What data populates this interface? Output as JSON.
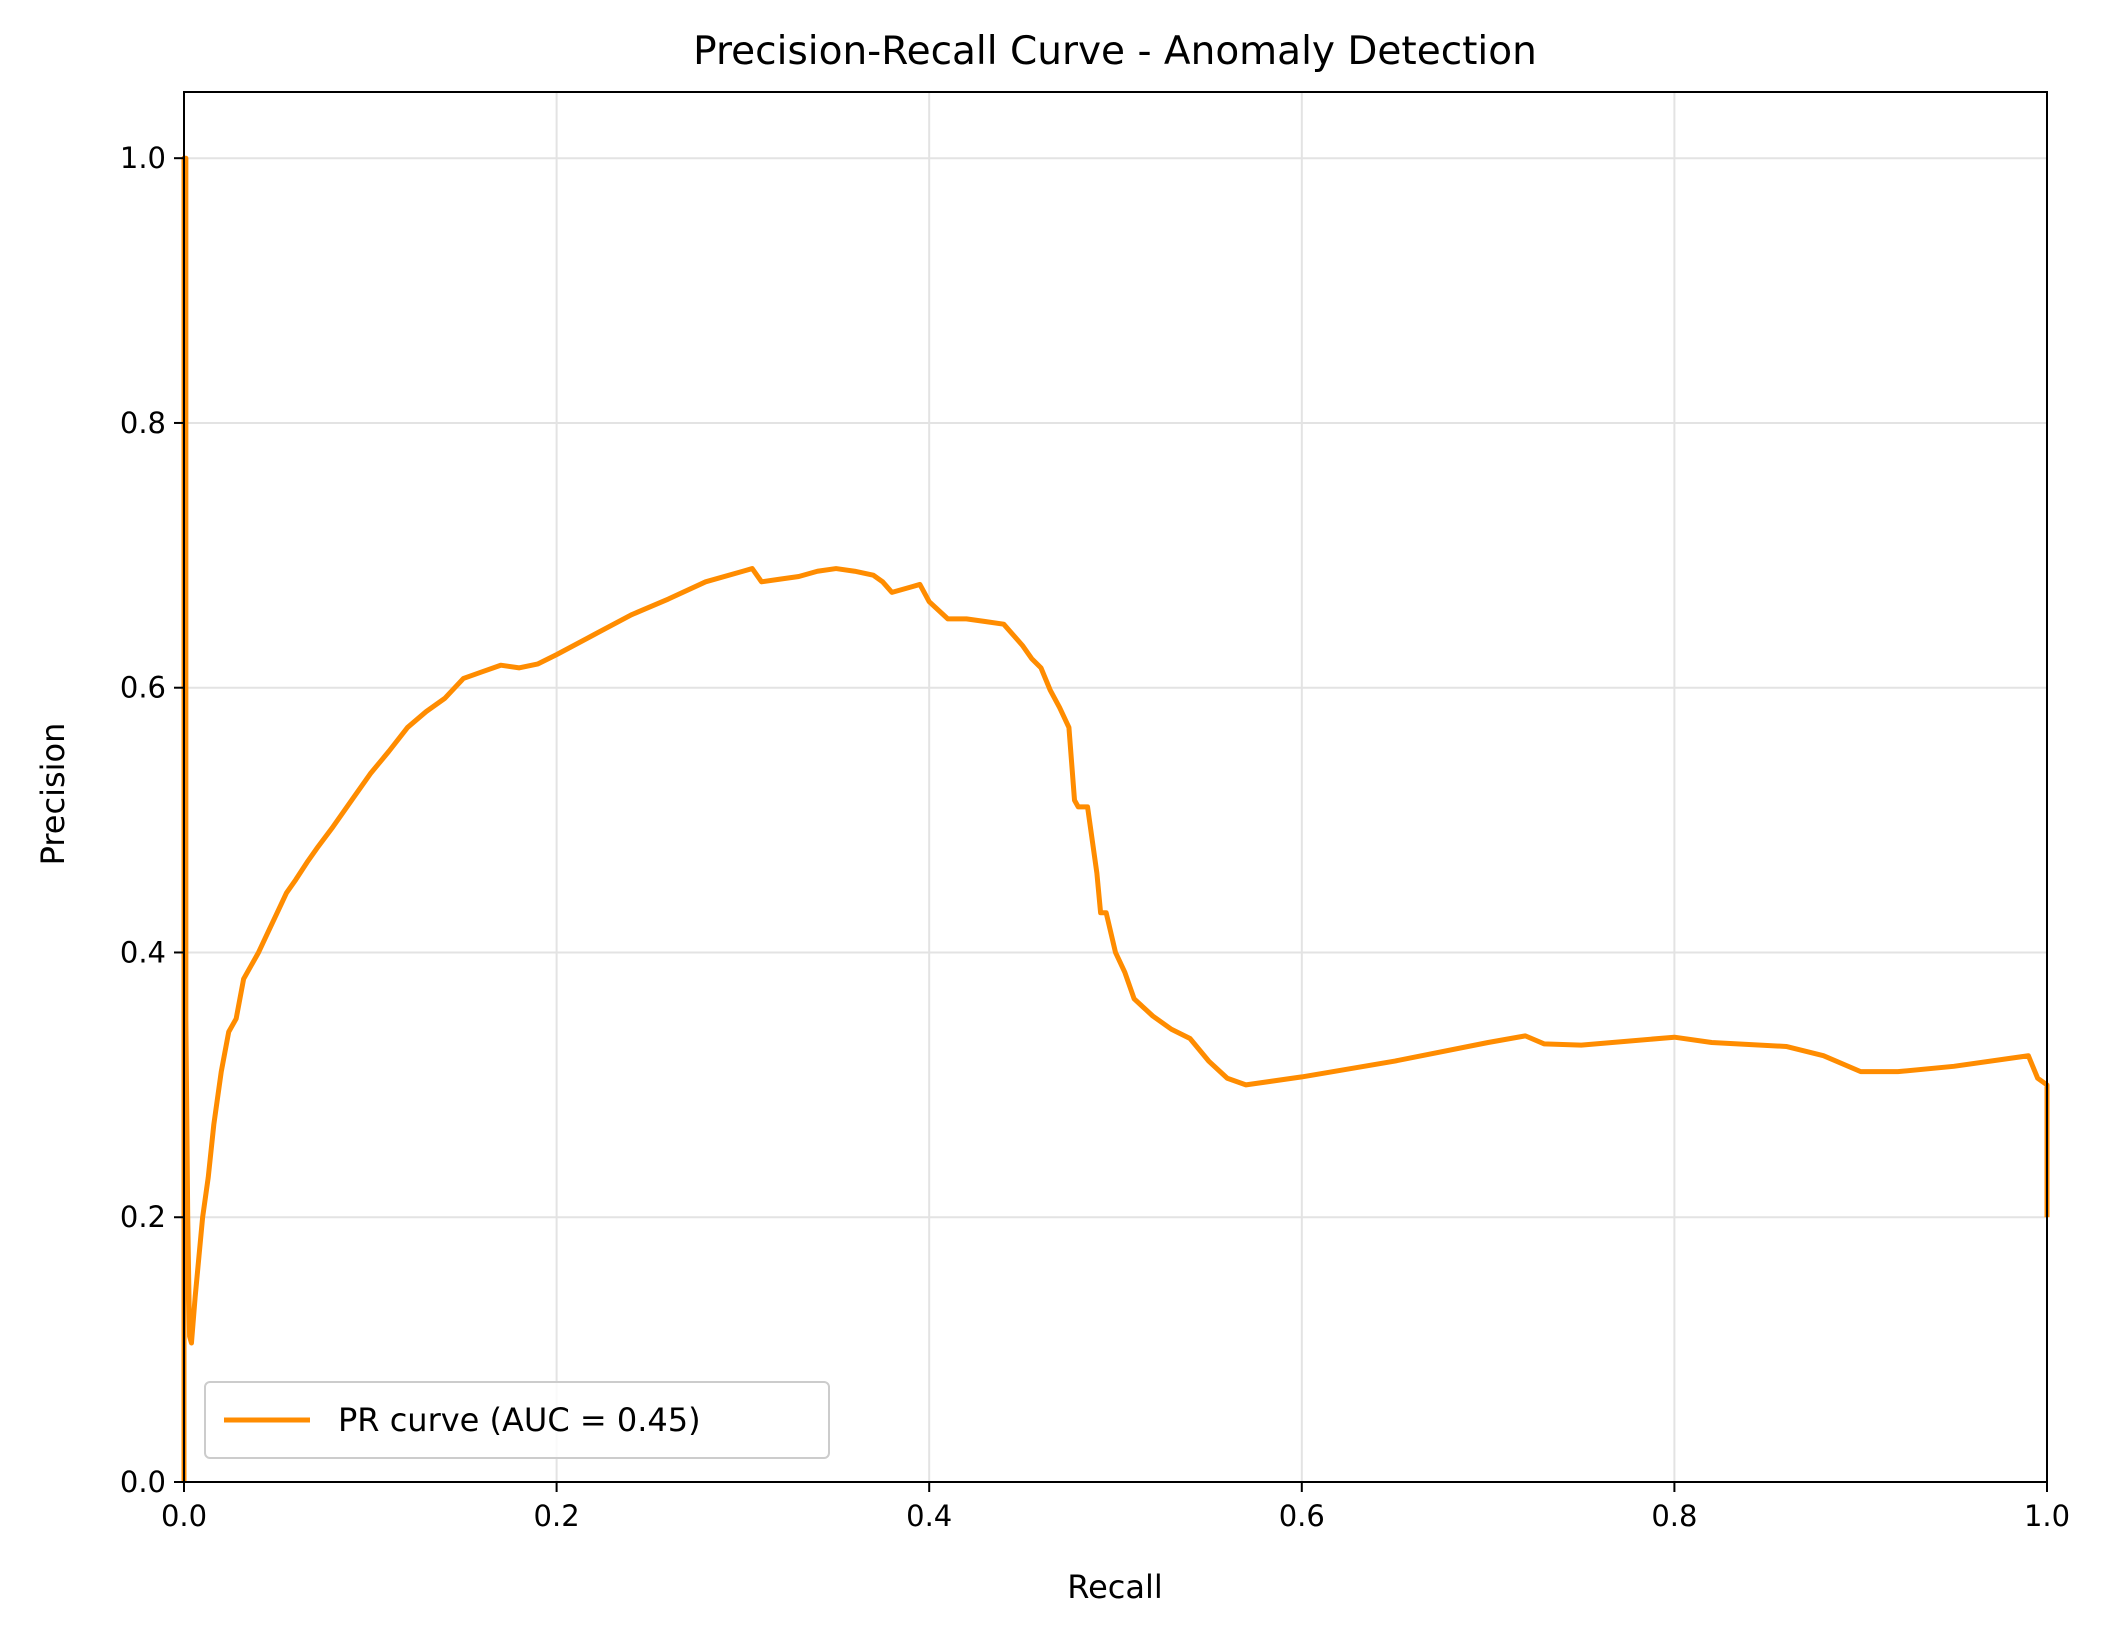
{
  "chart_data": {
    "type": "line",
    "title": "Precision-Recall Curve - Anomaly Detection",
    "xlabel": "Recall",
    "ylabel": "Precision",
    "xlim": [
      0.0,
      1.0
    ],
    "ylim": [
      0.0,
      1.05
    ],
    "x_ticks": [
      0.0,
      0.2,
      0.4,
      0.6,
      0.8,
      1.0
    ],
    "x_tick_labels": [
      "0.0",
      "0.2",
      "0.4",
      "0.6",
      "0.8",
      "1.0"
    ],
    "y_ticks": [
      0.0,
      0.2,
      0.4,
      0.6,
      0.8,
      1.0
    ],
    "y_tick_labels": [
      "0.0",
      "0.2",
      "0.4",
      "0.6",
      "0.8",
      "1.0"
    ],
    "grid": true,
    "legend_position": "lower-left",
    "series": [
      {
        "name": "PR curve (AUC = 0.45)",
        "color": "#ff8c00",
        "x": [
          0.0,
          0.0,
          0.001,
          0.001,
          0.002,
          0.003,
          0.004,
          0.006,
          0.008,
          0.01,
          0.013,
          0.016,
          0.02,
          0.024,
          0.028,
          0.032,
          0.036,
          0.04,
          0.045,
          0.05,
          0.055,
          0.06,
          0.066,
          0.072,
          0.08,
          0.09,
          0.1,
          0.11,
          0.12,
          0.13,
          0.14,
          0.15,
          0.16,
          0.17,
          0.18,
          0.19,
          0.2,
          0.22,
          0.24,
          0.26,
          0.28,
          0.3,
          0.305,
          0.31,
          0.32,
          0.33,
          0.34,
          0.35,
          0.36,
          0.37,
          0.375,
          0.38,
          0.39,
          0.395,
          0.4,
          0.41,
          0.42,
          0.43,
          0.44,
          0.45,
          0.455,
          0.46,
          0.465,
          0.47,
          0.475,
          0.478,
          0.48,
          0.485,
          0.49,
          0.492,
          0.495,
          0.5,
          0.505,
          0.51,
          0.52,
          0.53,
          0.54,
          0.55,
          0.56,
          0.57,
          0.6,
          0.65,
          0.7,
          0.72,
          0.73,
          0.75,
          0.8,
          0.82,
          0.86,
          0.88,
          0.9,
          0.92,
          0.95,
          0.98,
          0.99,
          0.995,
          1.0,
          1.0
        ],
        "y": [
          0.0,
          1.0,
          1.0,
          0.35,
          0.2,
          0.11,
          0.105,
          0.14,
          0.17,
          0.2,
          0.23,
          0.27,
          0.31,
          0.34,
          0.35,
          0.38,
          0.39,
          0.4,
          0.415,
          0.43,
          0.445,
          0.455,
          0.468,
          0.48,
          0.495,
          0.515,
          0.535,
          0.552,
          0.57,
          0.582,
          0.592,
          0.607,
          0.612,
          0.617,
          0.615,
          0.618,
          0.625,
          0.64,
          0.655,
          0.667,
          0.68,
          0.688,
          0.69,
          0.68,
          0.682,
          0.684,
          0.688,
          0.69,
          0.688,
          0.685,
          0.68,
          0.672,
          0.676,
          0.678,
          0.665,
          0.652,
          0.652,
          0.65,
          0.648,
          0.632,
          0.622,
          0.615,
          0.598,
          0.585,
          0.57,
          0.515,
          0.51,
          0.51,
          0.46,
          0.43,
          0.43,
          0.4,
          0.385,
          0.365,
          0.352,
          0.342,
          0.335,
          0.318,
          0.305,
          0.3,
          0.306,
          0.318,
          0.332,
          0.337,
          0.331,
          0.33,
          0.336,
          0.332,
          0.329,
          0.322,
          0.31,
          0.31,
          0.314,
          0.32,
          0.322,
          0.305,
          0.3,
          0.2
        ]
      }
    ]
  }
}
